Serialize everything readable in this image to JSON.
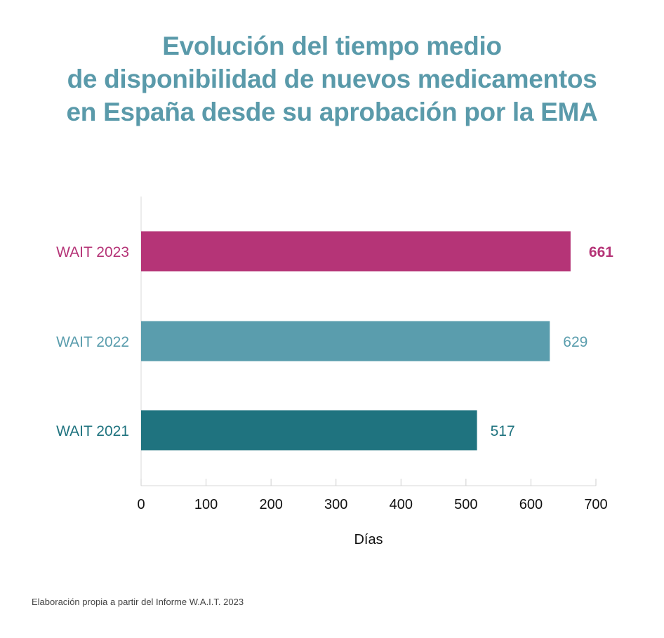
{
  "title_lines": [
    "Evolución del tiempo medio",
    "de disponibilidad de nuevos medicamentos",
    "en España desde su aprobación por la EMA"
  ],
  "source": "Elaboración propia a partir del Informe W.A.I.T. 2023",
  "chart_data": {
    "type": "bar",
    "orientation": "horizontal",
    "title": "Evolución del tiempo medio de disponibilidad de nuevos medicamentos en España desde su aprobación por la EMA",
    "categories": [
      "WAIT 2023",
      "WAIT 2022",
      "WAIT 2021"
    ],
    "values": [
      661,
      629,
      517
    ],
    "value_labels": [
      "661",
      "629",
      "517"
    ],
    "colors": [
      "#b53477",
      "#5a9dad",
      "#1f737f"
    ],
    "highlight": [
      true,
      false,
      false
    ],
    "xlabel": "Días",
    "ylabel": "",
    "xlim": [
      0,
      700
    ],
    "xticks": [
      0,
      100,
      200,
      300,
      400,
      500,
      600,
      700
    ],
    "xtick_labels": [
      "0",
      "100",
      "200",
      "300",
      "400",
      "500",
      "600",
      "700"
    ],
    "grid": false
  }
}
